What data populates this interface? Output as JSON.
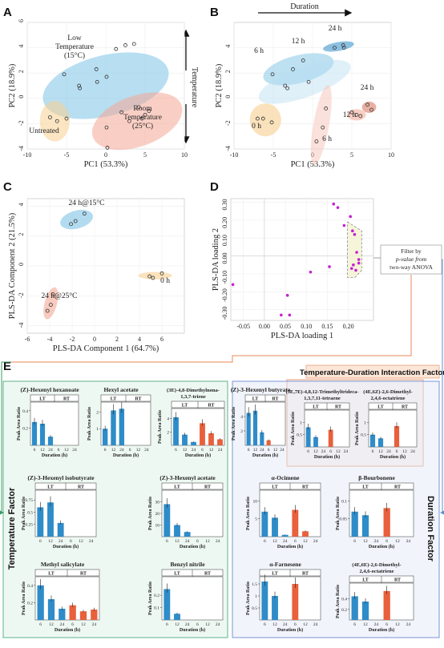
{
  "panels": {
    "a": "A",
    "b": "B",
    "c": "C",
    "d": "D",
    "e": "E"
  },
  "chart_data": [
    {
      "type": "scatter",
      "id": "A",
      "xlabel": "PC1 (53.3%)",
      "ylabel": "PC2 (18.9%)",
      "xlim": [
        -10,
        10
      ],
      "ylim": [
        -4,
        6
      ],
      "xticks": [
        "-10",
        "-5",
        "0",
        "5",
        "10"
      ],
      "yticks": [
        "-4",
        "-2",
        "0",
        "2",
        "4",
        "6"
      ],
      "side_label": "Temperature",
      "group_labels": [
        {
          "lines": [
            "Low",
            "Temperature",
            "(15°C)"
          ]
        },
        {
          "lines": [
            "Untreated"
          ]
        },
        {
          "lines": [
            "Room",
            "Temperature",
            "(25°C)"
          ]
        }
      ],
      "ellipses": [
        {
          "cx": 0,
          "cy": 1.0,
          "rx": 8.2,
          "ry": 2.4,
          "angle": 14,
          "color": "#7ec3e6"
        },
        {
          "cx": -6.5,
          "cy": -1.8,
          "rx": 1.9,
          "ry": 1.6,
          "angle": 0,
          "color": "#f7cf8f"
        },
        {
          "cx": 4.0,
          "cy": -1.8,
          "rx": 6.0,
          "ry": 2.0,
          "angle": 20,
          "color": "#f4a896"
        }
      ],
      "points": [
        {
          "x": -5.3,
          "y": 1.9
        },
        {
          "x": -3.4,
          "y": 1.0
        },
        {
          "x": -3.3,
          "y": 0.8
        },
        {
          "x": -1.2,
          "y": 2.3
        },
        {
          "x": -1.1,
          "y": 1.3
        },
        {
          "x": 0.1,
          "y": 1.7
        },
        {
          "x": 1.3,
          "y": 3.9
        },
        {
          "x": 2.5,
          "y": 4.2
        },
        {
          "x": 3.6,
          "y": 4.3
        },
        {
          "x": -7.1,
          "y": -1.5
        },
        {
          "x": -6.2,
          "y": -1.8
        },
        {
          "x": -5.0,
          "y": -1.6
        },
        {
          "x": 0.1,
          "y": -2.3
        },
        {
          "x": 0.2,
          "y": -3.9
        },
        {
          "x": 2.0,
          "y": -1.1
        },
        {
          "x": 3.0,
          "y": -1.8
        },
        {
          "x": 4.2,
          "y": -0.7
        },
        {
          "x": 4.6,
          "y": -1.6
        },
        {
          "x": 5.0,
          "y": -1.3
        },
        {
          "x": 5.5,
          "y": -1.0
        }
      ]
    },
    {
      "type": "scatter",
      "id": "B",
      "xlabel": "PC1 (53.3%)",
      "ylabel": "PC2 (18.9%)",
      "xlim": [
        -10,
        10
      ],
      "ylim": [
        -4,
        6
      ],
      "xticks": [
        "-10",
        "-5",
        "0",
        "5",
        "10"
      ],
      "yticks": [
        "-4",
        "-2",
        "0",
        "2",
        "4"
      ],
      "top_label": "Duration",
      "group_labels": [
        "24 h",
        "12 h",
        "6 h",
        "0 h",
        "24 h",
        "12 h",
        "6 h"
      ],
      "points": [
        {
          "x": 2.8,
          "y": 4.0
        },
        {
          "x": 3.9,
          "y": 4.2
        },
        {
          "x": 4.0,
          "y": 4.0
        },
        {
          "x": -1.2,
          "y": 3.0
        },
        {
          "x": -2.5,
          "y": 2.3
        },
        {
          "x": -3.5,
          "y": 1.0
        },
        {
          "x": -3.2,
          "y": 0.8
        },
        {
          "x": -5.1,
          "y": 1.9
        },
        {
          "x": -0.5,
          "y": 1.3
        },
        {
          "x": -7.0,
          "y": -1.6
        },
        {
          "x": -6.3,
          "y": -1.6
        },
        {
          "x": -5.2,
          "y": -1.9
        },
        {
          "x": 7.0,
          "y": -0.5
        },
        {
          "x": 7.5,
          "y": -0.9
        },
        {
          "x": 5.0,
          "y": -1.1
        },
        {
          "x": 5.6,
          "y": -1.3
        },
        {
          "x": 6.1,
          "y": -1.4
        },
        {
          "x": 0.5,
          "y": -3.4
        },
        {
          "x": 1.3,
          "y": -2.3
        },
        {
          "x": 1.7,
          "y": -0.8
        }
      ]
    },
    {
      "type": "scatter",
      "id": "C",
      "xlabel": "PLS-DA Component 1 (64.7%)",
      "ylabel": "PLS-DA Component 2 (21.5%)",
      "xlim": [
        -6,
        8
      ],
      "ylim": [
        -4.5,
        4.5
      ],
      "xticks": [
        "-6",
        "-4",
        "-2",
        "0",
        "2",
        "4",
        "6"
      ],
      "yticks": [
        "-4",
        "-2",
        "0",
        "2",
        "4"
      ],
      "group_labels": [
        "24 h@15°C",
        "0 h",
        "24 h@25°C"
      ],
      "points": [
        {
          "x": -2.1,
          "y": 2.8
        },
        {
          "x": -1.7,
          "y": 3.0
        },
        {
          "x": -0.9,
          "y": 3.5
        },
        {
          "x": 4.9,
          "y": -0.7
        },
        {
          "x": 5.2,
          "y": -0.8
        },
        {
          "x": 6.0,
          "y": -0.5
        },
        {
          "x": -3.7,
          "y": -1.9
        },
        {
          "x": -3.9,
          "y": -2.6
        },
        {
          "x": -4.2,
          "y": -3.0
        }
      ]
    },
    {
      "type": "scatter",
      "id": "D",
      "xlabel": "PLS-DA loading 1",
      "ylabel": "PLS-DA loading 2",
      "xlim": [
        -0.08,
        0.26
      ],
      "ylim": [
        -0.36,
        0.32
      ],
      "xticks": [
        "-0.05",
        "0.00",
        "0.05",
        "0.10",
        "0.15",
        "0.20"
      ],
      "yticks": [
        "-0.30",
        "-0.20",
        "-0.10",
        "0.00",
        "0.10",
        "0.20",
        "0.30"
      ],
      "callout": [
        "Filter by",
        "p-value from",
        "two-way ANOVA"
      ],
      "points": [
        {
          "x": -0.075,
          "y": -0.16
        },
        {
          "x": 0.04,
          "y": -0.33
        },
        {
          "x": 0.06,
          "y": -0.33
        },
        {
          "x": 0.055,
          "y": -0.22
        },
        {
          "x": 0.11,
          "y": -0.09
        },
        {
          "x": 0.155,
          "y": -0.06
        },
        {
          "x": 0.165,
          "y": 0.29
        },
        {
          "x": 0.175,
          "y": 0.27
        },
        {
          "x": 0.19,
          "y": 0.17
        },
        {
          "x": 0.205,
          "y": 0.22
        },
        {
          "x": 0.21,
          "y": 0.14
        },
        {
          "x": 0.215,
          "y": 0.12
        },
        {
          "x": 0.22,
          "y": 0.02
        },
        {
          "x": 0.225,
          "y": -0.02
        },
        {
          "x": 0.212,
          "y": -0.05
        },
        {
          "x": 0.225,
          "y": -0.04
        },
        {
          "x": 0.218,
          "y": -0.08
        },
        {
          "x": 0.208,
          "y": -0.07
        }
      ]
    }
  ],
  "factors": {
    "interaction": "Temperature-Duration Interaction Factor",
    "temperature": "Temperature Factor",
    "duration": "Duration Factor"
  },
  "bar_common": {
    "ylabel": "Peak Area Ratio",
    "xlabel": "Duration (h)",
    "lt": "LT",
    "rt": "RT",
    "ticks": [
      "6",
      "12",
      "24"
    ],
    "lt_color": "#2e8cc9",
    "rt_color": "#e8603c"
  },
  "bar_charts": [
    {
      "title": [
        "(Z)-Hexenyl hexanoate"
      ],
      "yticks": [
        "0.4",
        "0.2"
      ],
      "ymax": 0.5,
      "lt": [
        0.27,
        0.25,
        0.1
      ],
      "rt": [
        0,
        0,
        0
      ]
    },
    {
      "title": [
        "Hexyl acetate"
      ],
      "yticks": [
        "2",
        "1"
      ],
      "ymax": 2.6,
      "lt": [
        1.0,
        2.1,
        2.2
      ],
      "rt": [
        0,
        0,
        0
      ]
    },
    {
      "title": [
        "(3E)-4,8-Dimethylnona-",
        "1,3,7-triene"
      ],
      "yticks": [
        "4",
        "2"
      ],
      "ymax": 5.5,
      "lt": [
        4.2,
        1.6,
        0.5
      ],
      "rt": [
        3.3,
        1.8,
        0.9
      ]
    },
    {
      "title": [
        "(Z)-3-Hexenyl butyrate"
      ],
      "yticks": [
        "4",
        "2"
      ],
      "ymax": 6,
      "lt": [
        4.5,
        4.8,
        1.8
      ],
      "rt": [
        0.7,
        0,
        0
      ]
    },
    {
      "title": [
        "(3E,7E)-4,8,12-Trimethyltrideca-",
        "1,3,7,11-tetraene"
      ],
      "yticks": [
        "1",
        "0.5"
      ],
      "ymax": 1.5,
      "lt": [
        0.8,
        0.4,
        0
      ],
      "rt": [
        0.7,
        0,
        0
      ]
    },
    {
      "title": [
        "(4E,6Z)-2,6-Dimethyl-",
        "2,4,6-octatriene"
      ],
      "yticks": [
        "1",
        "0.5"
      ],
      "ymax": 1.5,
      "lt": [
        0.5,
        0.35,
        0
      ],
      "rt": [
        0.85,
        0,
        0
      ]
    },
    {
      "title": [
        "(Z)-3-Hexenyl isobutyrate"
      ],
      "yticks": [
        "0.75",
        "0.5",
        "0.25"
      ],
      "ymax": 0.95,
      "lt": [
        0.6,
        0.7,
        0.28
      ],
      "rt": [
        0,
        0,
        0
      ]
    },
    {
      "title": [
        "(Z)-3-Hexenyl acetate"
      ],
      "yticks": [
        "30",
        "20",
        "10"
      ],
      "ymax": 40,
      "lt": [
        28,
        10,
        4
      ],
      "rt": [
        0,
        0,
        0
      ]
    },
    {
      "title": [
        "Methyl salicylate"
      ],
      "yticks": [
        "0.4",
        "0.2"
      ],
      "ymax": 0.5,
      "lt": [
        0.4,
        0.24,
        0.13
      ],
      "rt": [
        0.17,
        0.1,
        0.12
      ]
    },
    {
      "title": [
        "Benzyl nitrile"
      ],
      "yticks": [
        "0.2",
        "0.1"
      ],
      "ymax": 0.35,
      "lt": [
        0.25,
        0.05,
        0
      ],
      "rt": [
        0,
        0,
        0
      ]
    },
    {
      "title": [
        "α-Ocimene"
      ],
      "yticks": [
        "10",
        "5"
      ],
      "ymax": 13,
      "lt": [
        7.0,
        5.3,
        0.5
      ],
      "rt": [
        7.5,
        1.5,
        0
      ]
    },
    {
      "title": [
        "β-Bourbonene"
      ],
      "yticks": [
        "0.1",
        "0.05"
      ],
      "ymax": 0.13,
      "lt": [
        0.07,
        0.06,
        0
      ],
      "rt": [
        0.08,
        0,
        0
      ]
    },
    {
      "title": [
        "α-Farnesene"
      ],
      "yticks": [
        "1.5",
        "1",
        "0.5"
      ],
      "ymax": 1.8,
      "lt": [
        1.6,
        1.0,
        0
      ],
      "rt": [
        1.5,
        0,
        0
      ]
    },
    {
      "title": [
        "(4E,6E)-2,6-Dimethyl-",
        "2,4,6-octatriene"
      ],
      "yticks": [
        "0.4",
        "0.2"
      ],
      "ymax": 0.7,
      "lt": [
        0.45,
        0.35,
        0
      ],
      "rt": [
        0.55,
        0,
        0
      ]
    }
  ]
}
